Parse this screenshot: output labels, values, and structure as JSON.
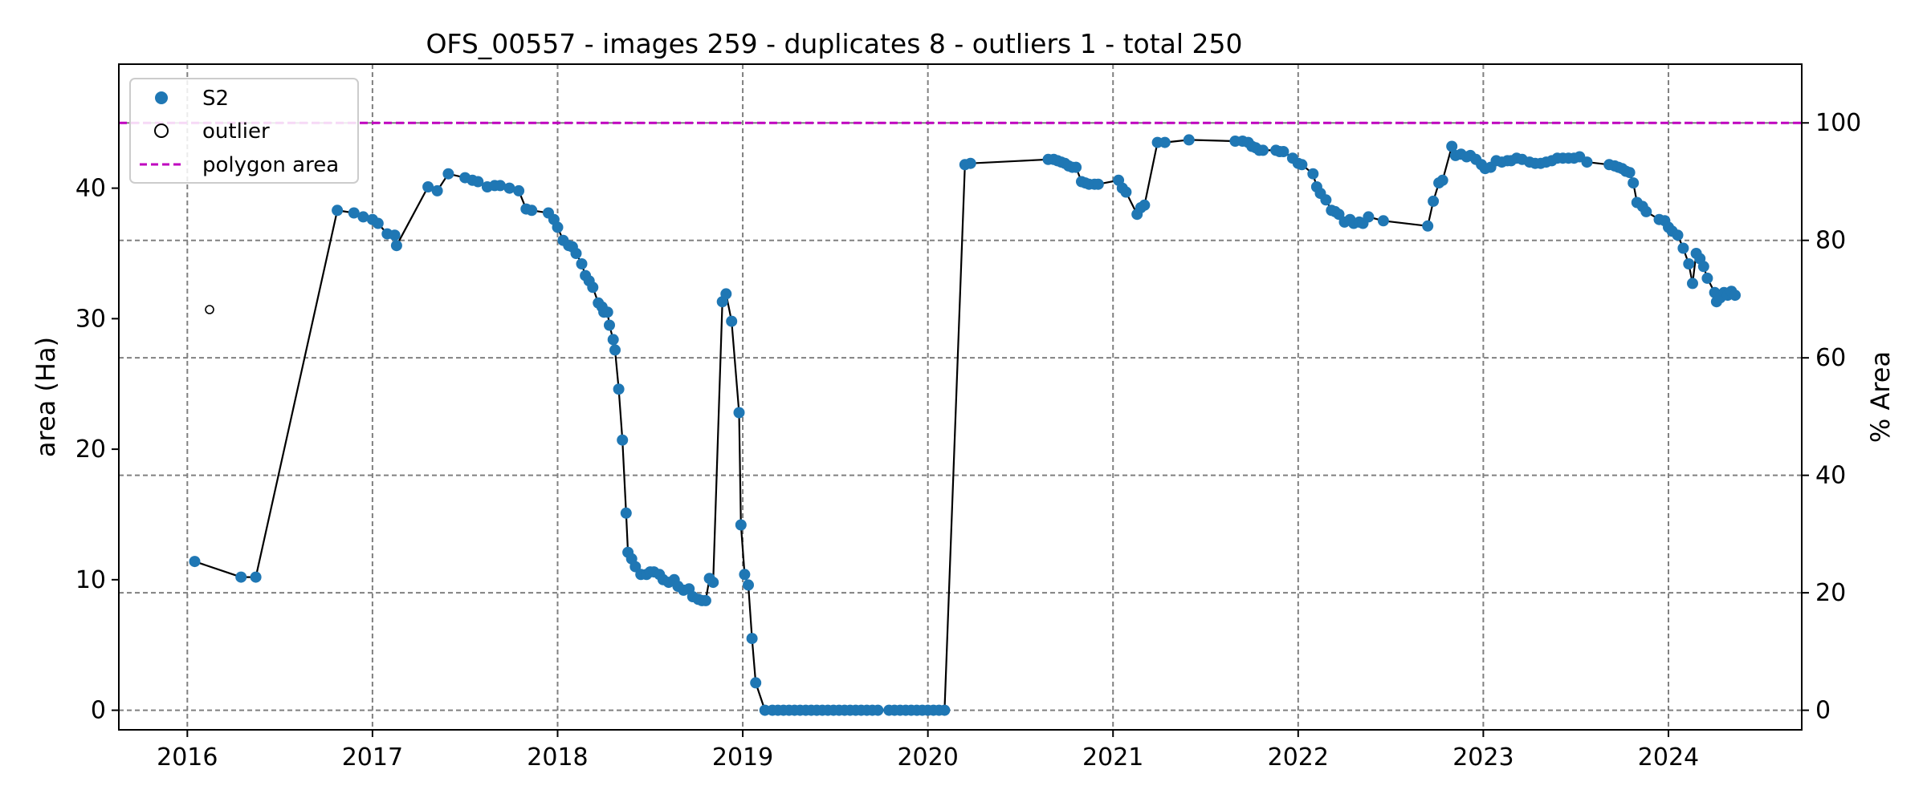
{
  "chart_data": {
    "type": "line",
    "title": "OFS_00557 - images 259 - duplicates 8 - outliers 1 - total 250",
    "ylabel": "area (Ha)",
    "y2label": "% Area",
    "xlim": [
      2015.63,
      2024.72
    ],
    "ylim": [
      -1.5,
      49.5
    ],
    "y2lim": [
      -3.33,
      110
    ],
    "xticks": [
      2016,
      2017,
      2018,
      2019,
      2020,
      2021,
      2022,
      2023,
      2024
    ],
    "xtick_labels": [
      "2016",
      "2017",
      "2018",
      "2019",
      "2020",
      "2021",
      "2022",
      "2023",
      "2024"
    ],
    "yticks": [
      0,
      10,
      20,
      30,
      40
    ],
    "yticks_labels": [
      "0",
      "10",
      "20",
      "30",
      "40"
    ],
    "y2ticks": [
      0,
      20,
      40,
      60,
      80,
      100
    ],
    "y2ticks_labels": [
      "0",
      "20",
      "40",
      "60",
      "80",
      "100"
    ],
    "grid": true,
    "legend_position": "top-left",
    "legend": [
      {
        "label": "S2",
        "type": "marker-filled",
        "color": "#1f77b4"
      },
      {
        "label": "outlier",
        "type": "marker-hollow",
        "color": "#000000"
      },
      {
        "label": "polygon area",
        "type": "dashed-line",
        "color": "#bf00bf"
      }
    ],
    "polygon_area": 45.0,
    "colors": {
      "series": "#1f77b4",
      "line": "#000000",
      "polygon": "#bf00bf",
      "grid": "#808080"
    },
    "outliers": [
      [
        2016.12,
        30.7
      ]
    ],
    "series": [
      {
        "name": "S2",
        "points": [
          [
            2016.04,
            11.4
          ],
          [
            2016.29,
            10.2
          ],
          [
            2016.37,
            10.2
          ],
          [
            2016.81,
            38.3
          ],
          [
            2016.9,
            38.1
          ],
          [
            2016.95,
            37.8
          ],
          [
            2017.0,
            37.6
          ],
          [
            2017.03,
            37.3
          ],
          [
            2017.08,
            36.5
          ],
          [
            2017.12,
            36.4
          ],
          [
            2017.13,
            35.6
          ],
          [
            2017.3,
            40.1
          ],
          [
            2017.35,
            39.8
          ],
          [
            2017.41,
            41.1
          ],
          [
            2017.5,
            40.8
          ],
          [
            2017.54,
            40.6
          ],
          [
            2017.57,
            40.5
          ],
          [
            2017.62,
            40.1
          ],
          [
            2017.66,
            40.2
          ],
          [
            2017.69,
            40.2
          ],
          [
            2017.74,
            40.0
          ],
          [
            2017.79,
            39.8
          ],
          [
            2017.83,
            38.4
          ],
          [
            2017.86,
            38.3
          ],
          [
            2017.95,
            38.1
          ],
          [
            2017.98,
            37.6
          ],
          [
            2018.0,
            37.0
          ],
          [
            2018.03,
            36.0
          ],
          [
            2018.06,
            35.6
          ],
          [
            2018.08,
            35.5
          ],
          [
            2018.1,
            35.0
          ],
          [
            2018.13,
            34.2
          ],
          [
            2018.15,
            33.3
          ],
          [
            2018.17,
            32.9
          ],
          [
            2018.19,
            32.4
          ],
          [
            2018.22,
            31.2
          ],
          [
            2018.24,
            30.9
          ],
          [
            2018.25,
            30.5
          ],
          [
            2018.27,
            30.5
          ],
          [
            2018.28,
            29.5
          ],
          [
            2018.3,
            28.4
          ],
          [
            2018.31,
            27.6
          ],
          [
            2018.33,
            24.6
          ],
          [
            2018.35,
            20.7
          ],
          [
            2018.37,
            15.1
          ],
          [
            2018.38,
            12.1
          ],
          [
            2018.4,
            11.6
          ],
          [
            2018.42,
            11.0
          ],
          [
            2018.45,
            10.4
          ],
          [
            2018.48,
            10.4
          ],
          [
            2018.5,
            10.6
          ],
          [
            2018.52,
            10.6
          ],
          [
            2018.55,
            10.4
          ],
          [
            2018.57,
            10.0
          ],
          [
            2018.6,
            9.8
          ],
          [
            2018.63,
            10.0
          ],
          [
            2018.65,
            9.5
          ],
          [
            2018.68,
            9.2
          ],
          [
            2018.71,
            9.3
          ],
          [
            2018.73,
            8.7
          ],
          [
            2018.76,
            8.5
          ],
          [
            2018.78,
            8.4
          ],
          [
            2018.8,
            8.4
          ],
          [
            2018.82,
            10.1
          ],
          [
            2018.84,
            9.8
          ],
          [
            2018.89,
            31.3
          ],
          [
            2018.91,
            31.9
          ],
          [
            2018.94,
            29.8
          ],
          [
            2018.98,
            22.8
          ],
          [
            2018.99,
            14.2
          ],
          [
            2019.01,
            10.4
          ],
          [
            2019.03,
            9.6
          ],
          [
            2019.05,
            5.5
          ],
          [
            2019.07,
            2.1
          ],
          [
            2019.12,
            0
          ],
          [
            2019.16,
            0
          ],
          [
            2019.19,
            0
          ],
          [
            2019.22,
            0
          ],
          [
            2019.25,
            0
          ],
          [
            2019.28,
            0
          ],
          [
            2019.31,
            0
          ],
          [
            2019.34,
            0
          ],
          [
            2019.37,
            0
          ],
          [
            2019.4,
            0
          ],
          [
            2019.43,
            0
          ],
          [
            2019.46,
            0
          ],
          [
            2019.49,
            0
          ],
          [
            2019.52,
            0
          ],
          [
            2019.55,
            0
          ],
          [
            2019.58,
            0
          ],
          [
            2019.61,
            0
          ],
          [
            2019.64,
            0
          ],
          [
            2019.67,
            0
          ],
          [
            2019.7,
            0
          ],
          [
            2019.73,
            0
          ],
          [
            2019.79,
            0
          ],
          [
            2019.82,
            0
          ],
          [
            2019.85,
            0
          ],
          [
            2019.88,
            0
          ],
          [
            2019.91,
            0
          ],
          [
            2019.94,
            0
          ],
          [
            2019.97,
            0
          ],
          [
            2020.0,
            0
          ],
          [
            2020.03,
            0
          ],
          [
            2020.06,
            0
          ],
          [
            2020.09,
            0
          ],
          [
            2020.2,
            41.8
          ],
          [
            2020.23,
            41.9
          ],
          [
            2020.65,
            42.2
          ],
          [
            2020.68,
            42.2
          ],
          [
            2020.7,
            42.1
          ],
          [
            2020.72,
            42.0
          ],
          [
            2020.74,
            41.9
          ],
          [
            2020.76,
            41.7
          ],
          [
            2020.78,
            41.6
          ],
          [
            2020.8,
            41.6
          ],
          [
            2020.83,
            40.5
          ],
          [
            2020.85,
            40.4
          ],
          [
            2020.87,
            40.3
          ],
          [
            2020.9,
            40.3
          ],
          [
            2020.92,
            40.3
          ],
          [
            2021.03,
            40.6
          ],
          [
            2021.05,
            40.0
          ],
          [
            2021.07,
            39.7
          ],
          [
            2021.13,
            38.0
          ],
          [
            2021.15,
            38.5
          ],
          [
            2021.17,
            38.7
          ],
          [
            2021.24,
            43.5
          ],
          [
            2021.28,
            43.5
          ],
          [
            2021.41,
            43.7
          ],
          [
            2021.66,
            43.6
          ],
          [
            2021.7,
            43.6
          ],
          [
            2021.73,
            43.5
          ],
          [
            2021.75,
            43.2
          ],
          [
            2021.77,
            43.1
          ],
          [
            2021.79,
            42.9
          ],
          [
            2021.81,
            42.9
          ],
          [
            2021.88,
            42.9
          ],
          [
            2021.9,
            42.8
          ],
          [
            2021.92,
            42.8
          ],
          [
            2021.97,
            42.3
          ],
          [
            2022.0,
            41.9
          ],
          [
            2022.02,
            41.8
          ],
          [
            2022.08,
            41.1
          ],
          [
            2022.1,
            40.1
          ],
          [
            2022.12,
            39.6
          ],
          [
            2022.15,
            39.1
          ],
          [
            2022.18,
            38.3
          ],
          [
            2022.2,
            38.2
          ],
          [
            2022.22,
            38.0
          ],
          [
            2022.25,
            37.4
          ],
          [
            2022.28,
            37.6
          ],
          [
            2022.3,
            37.3
          ],
          [
            2022.33,
            37.4
          ],
          [
            2022.35,
            37.3
          ],
          [
            2022.38,
            37.8
          ],
          [
            2022.46,
            37.5
          ],
          [
            2022.7,
            37.1
          ],
          [
            2022.73,
            39.0
          ],
          [
            2022.76,
            40.4
          ],
          [
            2022.78,
            40.6
          ],
          [
            2022.83,
            43.2
          ],
          [
            2022.85,
            42.5
          ],
          [
            2022.88,
            42.6
          ],
          [
            2022.91,
            42.4
          ],
          [
            2022.93,
            42.5
          ],
          [
            2022.96,
            42.2
          ],
          [
            2022.99,
            41.8
          ],
          [
            2023.01,
            41.5
          ],
          [
            2023.04,
            41.6
          ],
          [
            2023.07,
            42.1
          ],
          [
            2023.1,
            42.0
          ],
          [
            2023.13,
            42.1
          ],
          [
            2023.15,
            42.1
          ],
          [
            2023.18,
            42.3
          ],
          [
            2023.21,
            42.2
          ],
          [
            2023.25,
            42.0
          ],
          [
            2023.28,
            41.9
          ],
          [
            2023.31,
            41.9
          ],
          [
            2023.34,
            42.0
          ],
          [
            2023.37,
            42.1
          ],
          [
            2023.4,
            42.3
          ],
          [
            2023.43,
            42.3
          ],
          [
            2023.46,
            42.3
          ],
          [
            2023.49,
            42.3
          ],
          [
            2023.52,
            42.4
          ],
          [
            2023.56,
            42.0
          ],
          [
            2023.68,
            41.8
          ],
          [
            2023.71,
            41.7
          ],
          [
            2023.73,
            41.6
          ],
          [
            2023.75,
            41.5
          ],
          [
            2023.77,
            41.3
          ],
          [
            2023.79,
            41.2
          ],
          [
            2023.81,
            40.4
          ],
          [
            2023.83,
            38.9
          ],
          [
            2023.86,
            38.6
          ],
          [
            2023.88,
            38.2
          ],
          [
            2023.95,
            37.6
          ],
          [
            2023.98,
            37.5
          ],
          [
            2024.0,
            37.0
          ],
          [
            2024.02,
            36.7
          ],
          [
            2024.05,
            36.4
          ],
          [
            2024.08,
            35.4
          ],
          [
            2024.11,
            34.2
          ],
          [
            2024.13,
            32.7
          ],
          [
            2024.15,
            35.0
          ],
          [
            2024.17,
            34.6
          ],
          [
            2024.19,
            34.0
          ],
          [
            2024.21,
            33.1
          ],
          [
            2024.25,
            32.0
          ],
          [
            2024.26,
            31.3
          ],
          [
            2024.28,
            31.6
          ],
          [
            2024.3,
            32.0
          ],
          [
            2024.32,
            31.8
          ],
          [
            2024.34,
            32.1
          ],
          [
            2024.36,
            31.8
          ]
        ]
      }
    ]
  }
}
